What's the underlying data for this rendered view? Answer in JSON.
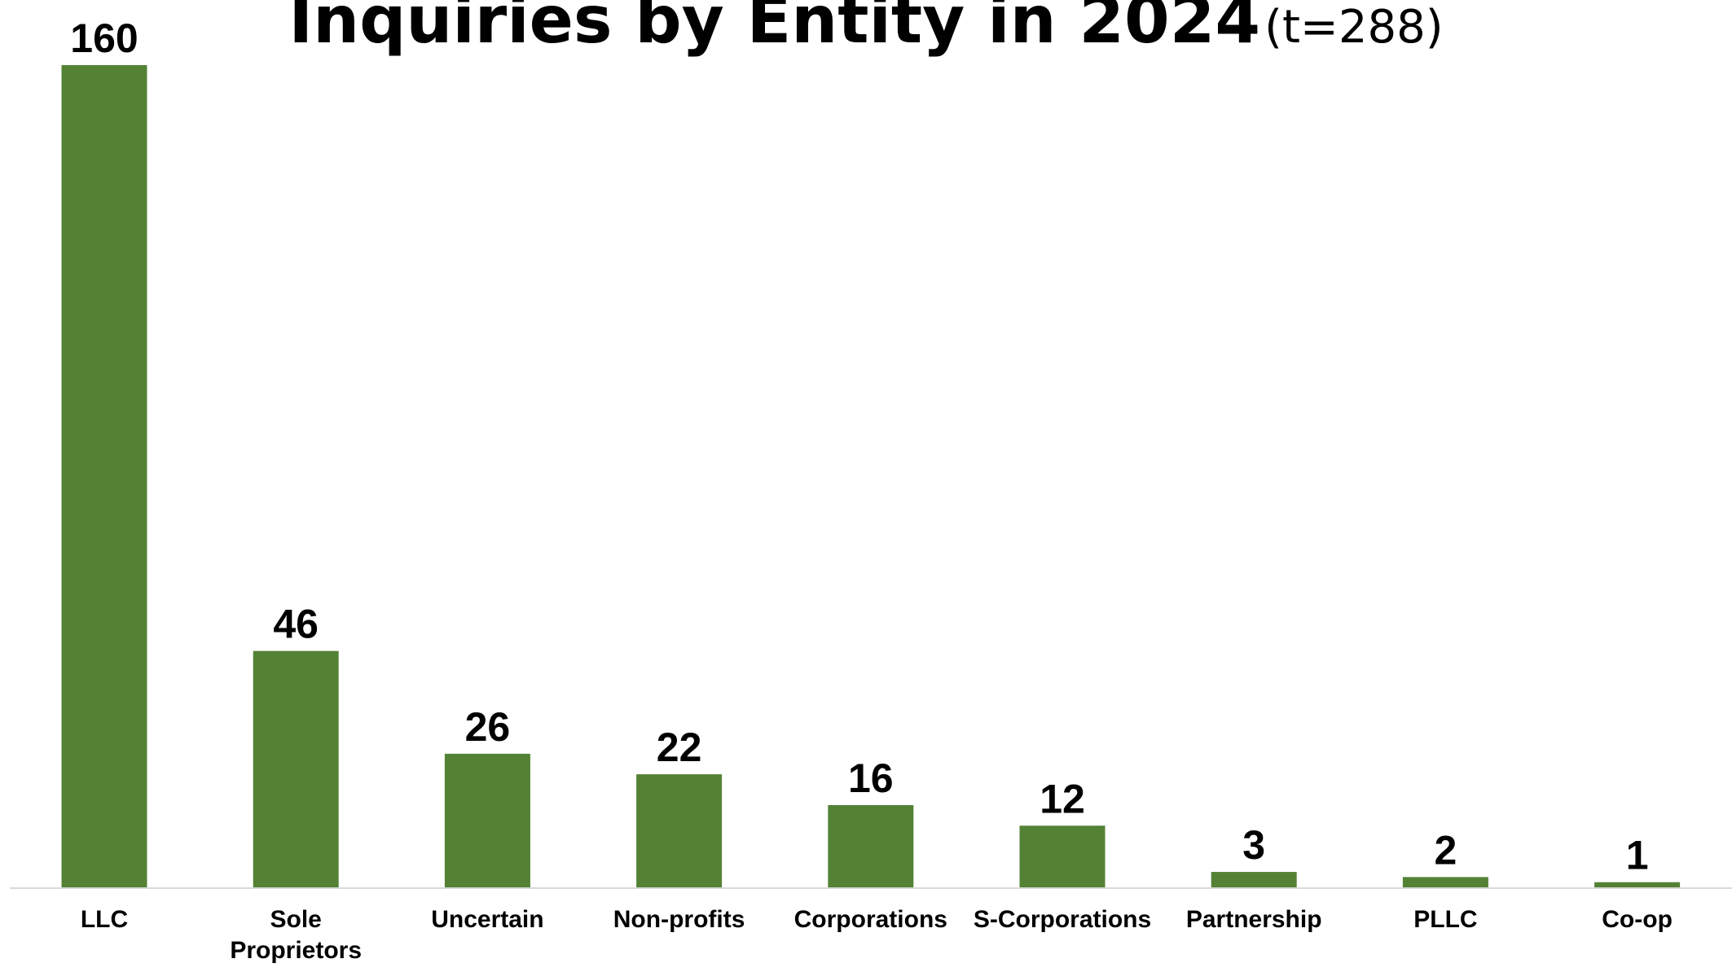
{
  "chart_data": {
    "type": "bar",
    "title": "Inquiries by Entity in 2024",
    "subtitle": "(t=288)",
    "xlabel": "",
    "ylabel": "",
    "categories": [
      "LLC",
      "Sole Proprietors",
      "Uncertain",
      "Non-profits",
      "Corporations",
      "S-Corporations",
      "Partnership",
      "PLLC",
      "Co-op"
    ],
    "values": [
      160,
      46,
      26,
      22,
      16,
      12,
      3,
      2,
      1
    ],
    "ylim": [
      0,
      160
    ],
    "grid": false,
    "legend": "none",
    "bar_color": "#548235",
    "axis_color": "#d9d9d9"
  }
}
